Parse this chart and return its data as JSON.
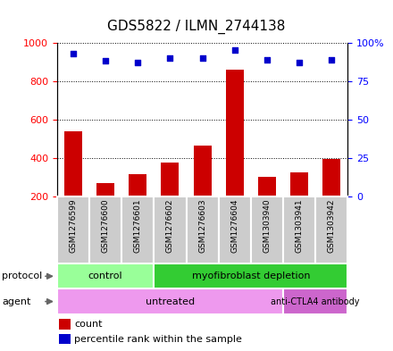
{
  "title": "GDS5822 / ILMN_2744138",
  "samples": [
    "GSM1276599",
    "GSM1276600",
    "GSM1276601",
    "GSM1276602",
    "GSM1276603",
    "GSM1276604",
    "GSM1303940",
    "GSM1303941",
    "GSM1303942"
  ],
  "counts": [
    540,
    270,
    320,
    380,
    465,
    860,
    305,
    325,
    395
  ],
  "percentile_ranks": [
    93,
    88,
    87,
    90,
    90,
    95,
    89,
    87,
    89
  ],
  "ylim_left": [
    200,
    1000
  ],
  "ylim_right": [
    0,
    100
  ],
  "yticks_left": [
    200,
    400,
    600,
    800,
    1000
  ],
  "ytick_labels_left": [
    "200",
    "400",
    "600",
    "800",
    "1000"
  ],
  "yticks_right": [
    0,
    25,
    50,
    75,
    100
  ],
  "ytick_labels_right": [
    "0",
    "25",
    "50",
    "75",
    "100%"
  ],
  "bar_color": "#cc0000",
  "scatter_color": "#0000cc",
  "grid_color": "#000000",
  "protocol_control_color": "#99ff99",
  "protocol_myo_color": "#33cc33",
  "agent_untreated_color": "#ee99ee",
  "agent_anti_color": "#cc66cc",
  "protocol_control_samples": 3,
  "agent_untreated_samples": 7,
  "bg_color": "#cccccc",
  "protocol_label": "protocol",
  "agent_label": "agent",
  "protocol_control_text": "control",
  "protocol_myo_text": "myofibroblast depletion",
  "agent_untreated_text": "untreated",
  "agent_anti_text": "anti-CTLA4 antibody",
  "legend_count_text": "count",
  "legend_pct_text": "percentile rank within the sample"
}
